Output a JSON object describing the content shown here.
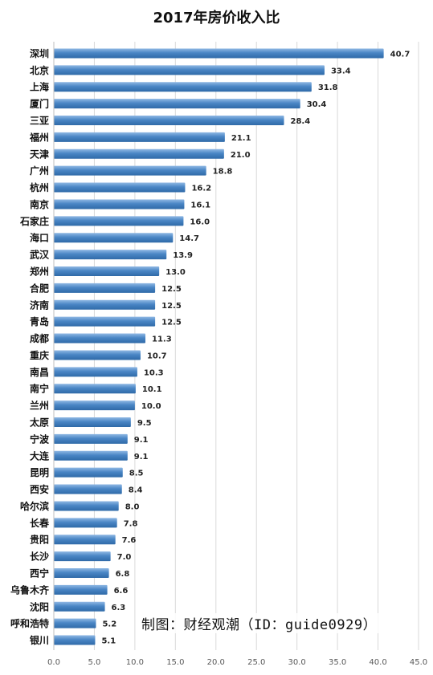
{
  "chart_data": {
    "type": "bar",
    "orientation": "horizontal",
    "title": "2017年房价收入比",
    "categories": [
      "深圳",
      "北京",
      "上海",
      "厦门",
      "三亚",
      "福州",
      "天津",
      "广州",
      "杭州",
      "南京",
      "石家庄",
      "海口",
      "武汉",
      "郑州",
      "合肥",
      "济南",
      "青岛",
      "成都",
      "重庆",
      "南昌",
      "南宁",
      "兰州",
      "太原",
      "宁波",
      "大连",
      "昆明",
      "西安",
      "哈尔滨",
      "长春",
      "贵阳",
      "长沙",
      "西宁",
      "乌鲁木齐",
      "沈阳",
      "呼和浩特",
      "银川"
    ],
    "values": [
      40.7,
      33.4,
      31.8,
      30.4,
      28.4,
      21.1,
      21.0,
      18.8,
      16.2,
      16.1,
      16.0,
      14.7,
      13.9,
      13.0,
      12.5,
      12.5,
      12.5,
      11.3,
      10.7,
      10.3,
      10.1,
      10.0,
      9.5,
      9.1,
      9.1,
      8.5,
      8.4,
      8.0,
      7.8,
      7.6,
      7.0,
      6.8,
      6.6,
      6.3,
      5.2,
      5.1
    ],
    "value_labels": [
      "40.7",
      "33.4",
      "31.8",
      "30.4",
      "28.4",
      "21.1",
      "21.0",
      "18.8",
      "16.2",
      "16.1",
      "16.0",
      "14.7",
      "13.9",
      "13.0",
      "12.5",
      "12.5",
      "12.5",
      "11.3",
      "10.7",
      "10.3",
      "10.1",
      "10.0",
      "9.5",
      "9.1",
      "9.1",
      "8.5",
      "8.4",
      "8.0",
      "7.8",
      "7.6",
      "7.0",
      "6.8",
      "6.6",
      "6.3",
      "5.2",
      "5.1"
    ],
    "xlim": [
      0,
      45
    ],
    "x_ticks": [
      "0.0",
      "5.0",
      "10.0",
      "15.0",
      "20.0",
      "25.0",
      "30.0",
      "35.0",
      "40.0",
      "45.0"
    ],
    "grid": true,
    "legend": "none",
    "bar_color": "#4a86c5"
  },
  "watermark": "制图：财经观潮（ID：guide0929）"
}
